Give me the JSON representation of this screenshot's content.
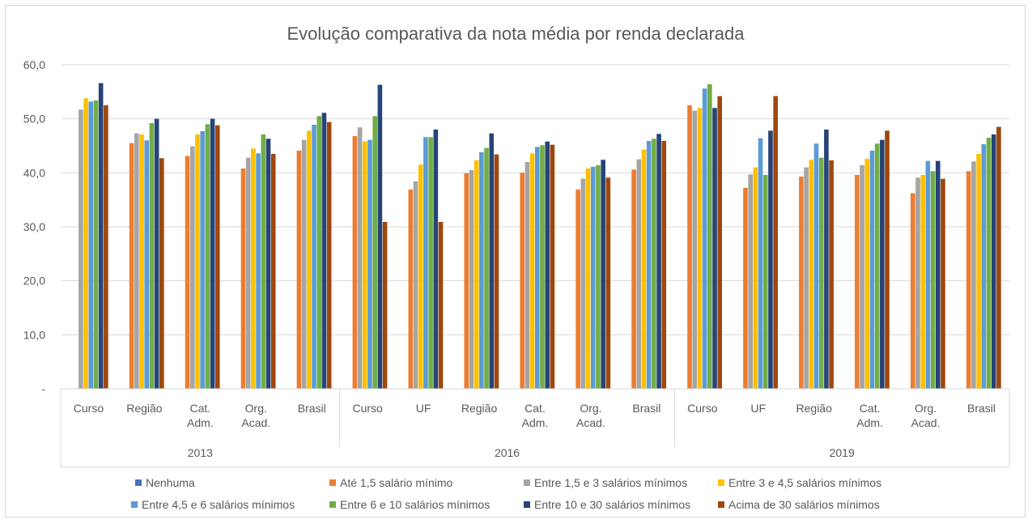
{
  "chart_data": {
    "type": "bar",
    "title": "Evolução comparativa da nota média por renda declarada",
    "xlabel": "",
    "ylabel": "",
    "ylim": [
      0,
      60
    ],
    "yticks": [
      "-",
      "10,0",
      "20,0",
      "30,0",
      "40,0",
      "50,0",
      "60,0"
    ],
    "grid": true,
    "legend_position": "bottom",
    "groups": [
      {
        "label": "2013",
        "categories": [
          "Curso",
          "Região",
          "Cat.\nAdm.",
          "Org.\nAcad.",
          "Brasil"
        ]
      },
      {
        "label": "2016",
        "categories": [
          "Curso",
          "UF",
          "Região",
          "Cat.\nAdm.",
          "Org.\nAcad.",
          "Brasil"
        ]
      },
      {
        "label": "2019",
        "categories": [
          "Curso",
          "UF",
          "Região",
          "Cat.\nAdm.",
          "Org.\nAcad.",
          "Brasil"
        ]
      }
    ],
    "series": [
      {
        "name": "Nenhuma",
        "color": "#4472c4",
        "values": [
          null,
          null,
          null,
          null,
          null,
          null,
          null,
          null,
          null,
          null,
          null,
          null,
          null,
          null,
          null,
          null,
          null
        ]
      },
      {
        "name": "Até 1,5 salário mínimo",
        "color": "#ed7d31",
        "values": [
          null,
          45.5,
          43.1,
          40.8,
          44.1,
          46.8,
          36.9,
          39.9,
          40.0,
          36.9,
          40.6,
          52.5,
          37.2,
          39.3,
          39.6,
          36.2,
          40.3
        ]
      },
      {
        "name": "Entre 1,5 e 3 salários mínimos",
        "color": "#a5a5a5",
        "values": [
          51.7,
          47.3,
          44.9,
          42.8,
          46.1,
          48.4,
          38.4,
          40.5,
          42.0,
          38.9,
          42.5,
          51.5,
          39.7,
          41.0,
          41.4,
          39.1,
          42.1
        ]
      },
      {
        "name": "Entre 3 e 4,5 salários mínimos",
        "color": "#ffc000",
        "values": [
          53.8,
          47.1,
          47.1,
          44.5,
          47.8,
          45.8,
          41.5,
          42.3,
          43.6,
          40.8,
          44.3,
          52.0,
          41.0,
          42.4,
          42.6,
          39.6,
          43.5
        ]
      },
      {
        "name": "Entre 4,5 e 6 salários mínimos",
        "color": "#5b9bd5",
        "values": [
          53.2,
          46.0,
          47.7,
          43.6,
          48.9,
          46.1,
          46.6,
          43.8,
          44.8,
          41.1,
          45.9,
          55.6,
          46.4,
          45.4,
          44.1,
          42.2,
          45.3
        ]
      },
      {
        "name": "Entre 6 e 10 salários mínimos",
        "color": "#70ad47",
        "values": [
          53.4,
          49.2,
          49.0,
          47.1,
          50.5,
          50.5,
          46.6,
          44.6,
          45.1,
          41.4,
          46.3,
          56.4,
          39.6,
          42.8,
          45.4,
          40.3,
          46.5
        ]
      },
      {
        "name": "Entre 10 e 30 salários mínimos",
        "color": "#264478",
        "values": [
          56.6,
          50.0,
          50.0,
          46.3,
          51.1,
          56.3,
          48.0,
          47.3,
          45.8,
          42.4,
          47.2,
          52.0,
          47.8,
          48.0,
          46.1,
          42.2,
          47.1
        ]
      },
      {
        "name": "Acima de 30 salários mínimos",
        "color": "#9e480e",
        "values": [
          52.5,
          42.7,
          48.8,
          43.5,
          49.4,
          30.9,
          30.9,
          43.4,
          45.2,
          39.1,
          45.9,
          54.2,
          54.2,
          42.3,
          47.8,
          38.9,
          48.5
        ]
      }
    ]
  }
}
